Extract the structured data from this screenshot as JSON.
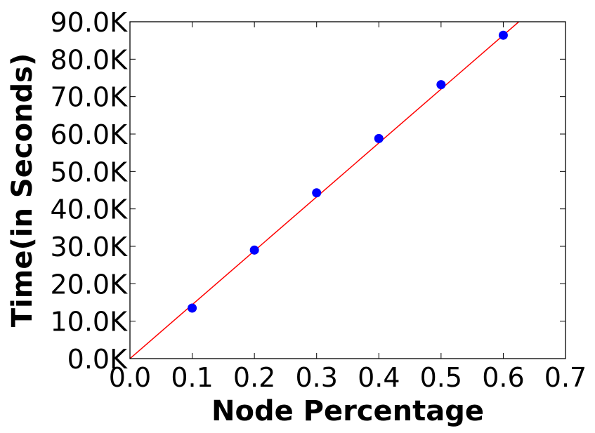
{
  "chart_data": {
    "type": "scatter",
    "title": "",
    "xlabel": "Node Percentage",
    "ylabel": "Time(in Seconds)",
    "xlim": [
      0.0,
      0.7
    ],
    "ylim": [
      0,
      90000
    ],
    "grid": false,
    "x_ticks": [
      0.0,
      0.1,
      0.2,
      0.3,
      0.4,
      0.5,
      0.6,
      0.7
    ],
    "x_tick_labels": [
      "0.0",
      "0.1",
      "0.2",
      "0.3",
      "0.4",
      "0.5",
      "0.6",
      "0.7"
    ],
    "y_ticks": [
      0,
      10000,
      20000,
      30000,
      40000,
      50000,
      60000,
      70000,
      80000,
      90000
    ],
    "y_tick_labels": [
      "0.0K",
      "10.0K",
      "20.0K",
      "30.0K",
      "40.0K",
      "50.0K",
      "60.0K",
      "70.0K",
      "80.0K",
      "90.0K"
    ],
    "series": [
      {
        "kind": "scatter",
        "color": "#0000ff",
        "x": [
          0.1,
          0.2,
          0.3,
          0.4,
          0.5,
          0.6
        ],
        "y": [
          13500,
          29000,
          44300,
          58800,
          73200,
          86400
        ]
      },
      {
        "kind": "line",
        "color": "#ff0000",
        "x": [
          0.0,
          0.625
        ],
        "y": [
          0,
          90000
        ]
      }
    ]
  }
}
